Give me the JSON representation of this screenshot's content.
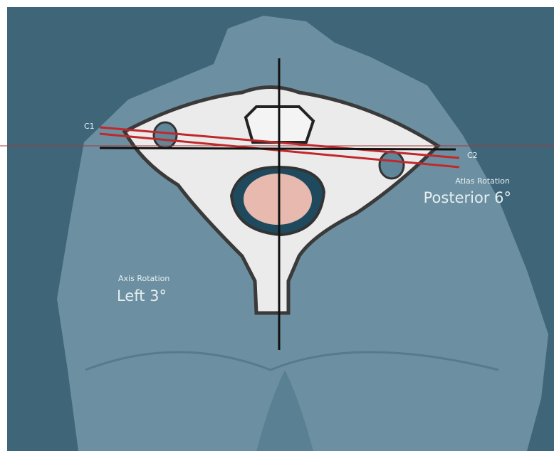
{
  "lines": {
    "c1": "C1",
    "c2": "C2"
  },
  "atlas": {
    "caption": "Atlas Rotation",
    "value": "Posterior 6°"
  },
  "axis": {
    "caption": "Axis Rotation",
    "value": "Left 3°"
  }
}
